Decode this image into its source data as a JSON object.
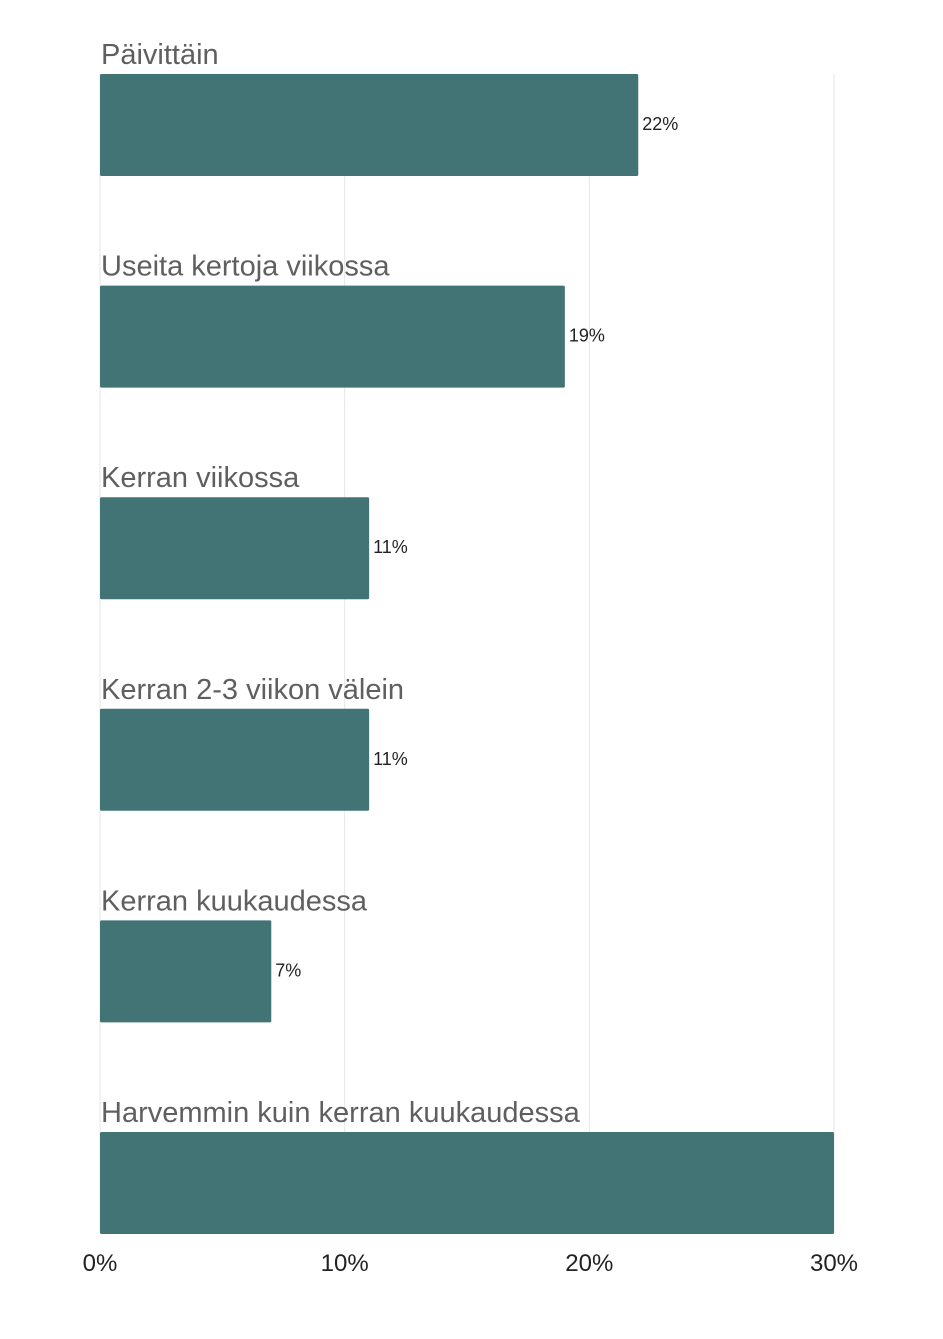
{
  "chart_data": {
    "type": "bar",
    "orientation": "horizontal",
    "categories": [
      "Päivittäin",
      "Useita kertoja viikossa",
      "Kerran viikossa",
      "Kerran 2-3 viikon välein",
      "Kerran kuukaudessa",
      "Harvemmin kuin kerran kuukaudessa"
    ],
    "values": [
      22,
      19,
      11,
      11,
      7,
      30
    ],
    "value_labels": [
      "22%",
      "19%",
      "11%",
      "11%",
      "7%",
      ""
    ],
    "xlim": [
      0,
      30
    ],
    "x_ticks": [
      0,
      10,
      20,
      30
    ],
    "x_tick_labels": [
      "0%",
      "10%",
      "20%",
      "30%"
    ],
    "grid": true,
    "colors": {
      "bar": "#427476",
      "grid": "#e6e6e6"
    }
  }
}
